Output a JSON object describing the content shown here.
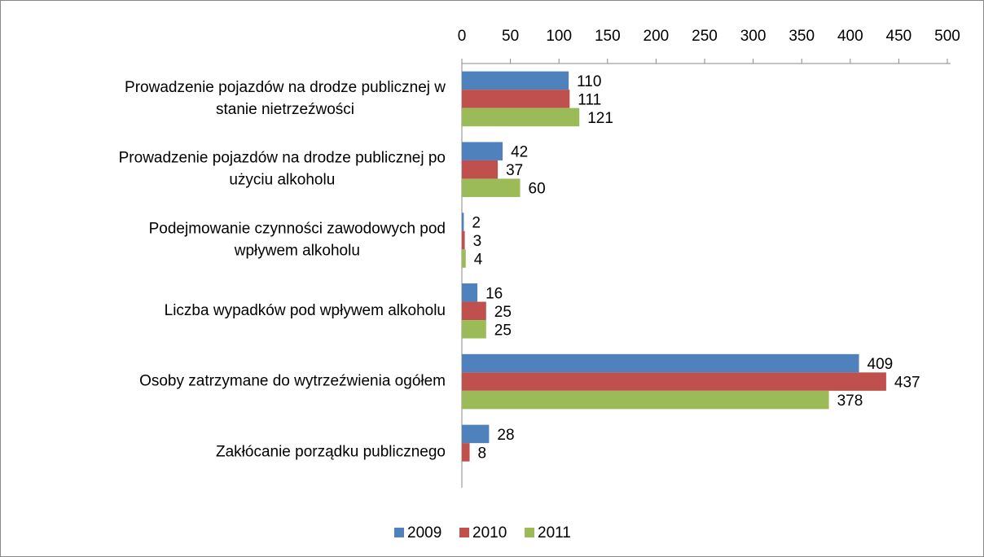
{
  "chart_data": {
    "type": "bar",
    "orientation": "horizontal",
    "categories": [
      [
        "Prowadzenie pojazdów na drodze publicznej w",
        "stanie nietrzeźwości"
      ],
      [
        "Prowadzenie pojazdów na drodze publicznej po",
        "użyciu alkoholu"
      ],
      [
        "Podejmowanie czynności zawodowych pod",
        "wpływem alkoholu"
      ],
      [
        "Liczba wypadków pod wpływem alkoholu"
      ],
      [
        "Osoby zatrzymane do wytrzeźwienia ogółem"
      ],
      [
        "Zakłócanie porządku publicznego"
      ]
    ],
    "series": [
      {
        "name": "2009",
        "color": "#4f81bd",
        "values": [
          110,
          42,
          2,
          16,
          409,
          28
        ]
      },
      {
        "name": "2010",
        "color": "#c0504d",
        "values": [
          111,
          37,
          3,
          25,
          437,
          8
        ]
      },
      {
        "name": "2011",
        "color": "#9bbb59",
        "values": [
          121,
          60,
          4,
          25,
          378,
          null
        ]
      }
    ],
    "xlim": [
      0,
      500
    ],
    "xticks": [
      0,
      50,
      100,
      150,
      200,
      250,
      300,
      350,
      400,
      450,
      500
    ],
    "legend": "bottom"
  }
}
